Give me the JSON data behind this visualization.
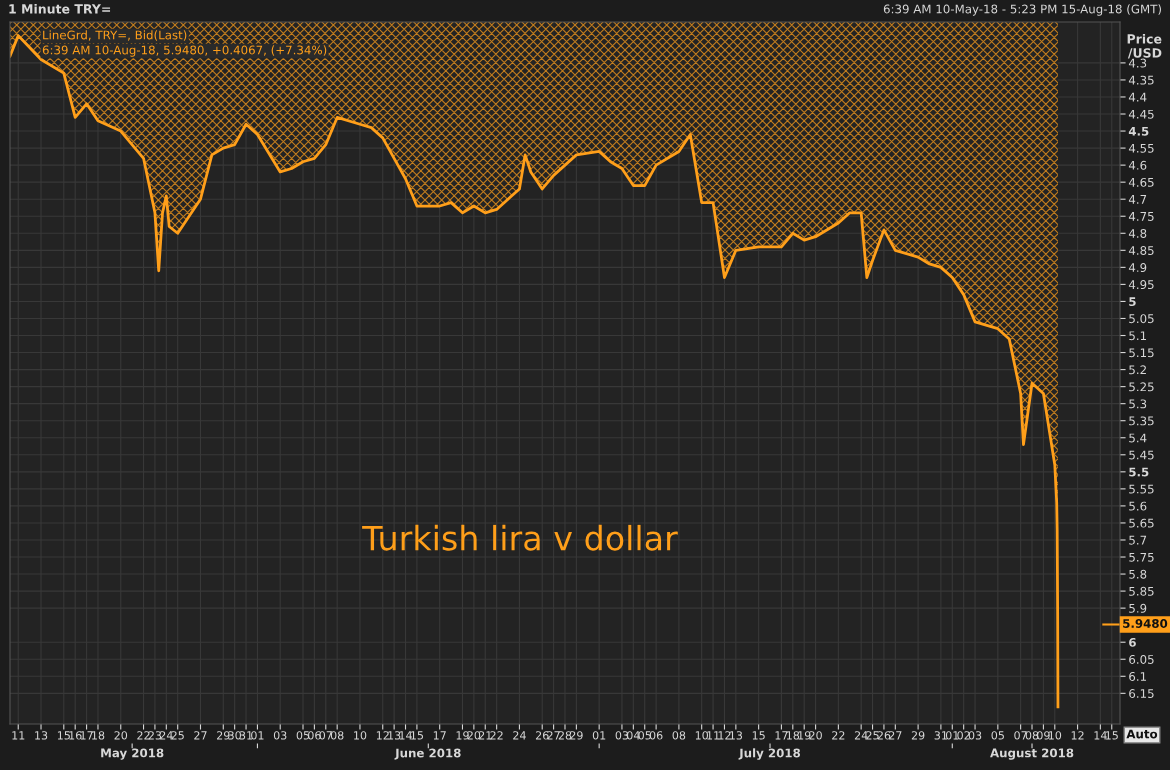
{
  "chart_data": {
    "type": "area",
    "title": "1 Minute TRY=",
    "subtitle": "6:39 AM 10-May-18 - 5:23 PM 15-Aug-18 (GMT)",
    "ylabel": "Price\n/USD",
    "annotations": [
      "LineGrd, TRY=, Bid(Last)",
      "6:39 AM 10-Aug-18, 5.9480, +0.4067, (+7.34%)",
      "Turkish lira v dollar",
      "Auto"
    ],
    "x": [
      "2018-05-10T06:39",
      "2018-05-11",
      "2018-05-13",
      "2018-05-15",
      "2018-05-16",
      "2018-05-17",
      "2018-05-18",
      "2018-05-20",
      "2018-05-22",
      "2018-05-23",
      "2018-05-23T08:00",
      "2018-05-23T16:00",
      "2018-05-24",
      "2018-05-24T06:00",
      "2018-05-25",
      "2018-05-27",
      "2018-05-28",
      "2018-05-29",
      "2018-05-30",
      "2018-05-31",
      "2018-06-01",
      "2018-06-03",
      "2018-06-04",
      "2018-06-05",
      "2018-06-06",
      "2018-06-07",
      "2018-06-08",
      "2018-06-10",
      "2018-06-11",
      "2018-06-12",
      "2018-06-13",
      "2018-06-14",
      "2018-06-15",
      "2018-06-17",
      "2018-06-18",
      "2018-06-19",
      "2018-06-20",
      "2018-06-21",
      "2018-06-22",
      "2018-06-24",
      "2018-06-24T12:00",
      "2018-06-25",
      "2018-06-26",
      "2018-06-27",
      "2018-06-28",
      "2018-06-29",
      "2018-07-01",
      "2018-07-02",
      "2018-07-03",
      "2018-07-04",
      "2018-07-05",
      "2018-07-06",
      "2018-07-08",
      "2018-07-09",
      "2018-07-10",
      "2018-07-11",
      "2018-07-12",
      "2018-07-13",
      "2018-07-15",
      "2018-07-16",
      "2018-07-17",
      "2018-07-18",
      "2018-07-19",
      "2018-07-20",
      "2018-07-22",
      "2018-07-23",
      "2018-07-24",
      "2018-07-24T12:00",
      "2018-07-25",
      "2018-07-26",
      "2018-07-27",
      "2018-07-29",
      "2018-07-30",
      "2018-07-31",
      "2018-08-01",
      "2018-08-02",
      "2018-08-03",
      "2018-08-05",
      "2018-08-06",
      "2018-08-07",
      "2018-08-07T06:00",
      "2018-08-08",
      "2018-08-09",
      "2018-08-10",
      "2018-08-10T04:00",
      "2018-08-10T05:00",
      "2018-08-10T06:00",
      "2018-08-10T06:39"
    ],
    "series": [
      {
        "color": "#ff9f1a",
        "values": [
          4.28,
          4.22,
          4.29,
          4.33,
          4.46,
          4.42,
          4.47,
          4.5,
          4.58,
          4.74,
          4.91,
          4.74,
          4.69,
          4.78,
          4.8,
          4.7,
          4.57,
          4.55,
          4.54,
          4.48,
          4.51,
          4.62,
          4.61,
          4.59,
          4.58,
          4.54,
          4.46,
          4.48,
          4.49,
          4.52,
          4.58,
          4.64,
          4.72,
          4.72,
          4.71,
          4.74,
          4.72,
          4.74,
          4.73,
          4.67,
          4.57,
          4.62,
          4.67,
          4.63,
          4.6,
          4.57,
          4.56,
          4.59,
          4.61,
          4.66,
          4.66,
          4.6,
          4.56,
          4.51,
          4.71,
          4.71,
          4.93,
          4.85,
          4.84,
          4.84,
          4.84,
          4.8,
          4.82,
          4.81,
          4.77,
          4.74,
          4.74,
          4.93,
          4.88,
          4.79,
          4.85,
          4.87,
          4.89,
          4.9,
          4.93,
          4.98,
          5.06,
          5.08,
          5.11,
          5.27,
          5.42,
          5.24,
          5.27,
          5.48,
          5.59,
          5.67,
          5.91,
          6.19
        ]
      }
    ],
    "ylim": [
      6.24,
      4.18
    ],
    "yticks": [
      4.3,
      4.35,
      4.4,
      4.45,
      4.5,
      4.55,
      4.6,
      4.65,
      4.7,
      4.75,
      4.8,
      4.85,
      4.9,
      4.95,
      5,
      5.05,
      5.1,
      5.15,
      5.2,
      5.25,
      5.3,
      5.35,
      5.4,
      5.45,
      5.5,
      5.55,
      5.6,
      5.65,
      5.7,
      5.75,
      5.8,
      5.85,
      5.9,
      6,
      6.05,
      6.1,
      6.15
    ],
    "xlim": [
      "2018-05-10T06:39",
      "2018-08-15T17:23"
    ],
    "xticks": [
      {
        "value": "2018-05-11",
        "label": "11"
      },
      {
        "value": "2018-05-13",
        "label": "13"
      },
      {
        "value": "2018-05-15",
        "label": "15"
      },
      {
        "value": "2018-05-16",
        "label": "16"
      },
      {
        "value": "2018-05-17",
        "label": "17"
      },
      {
        "value": "2018-05-18",
        "label": "18"
      },
      {
        "value": "2018-05-20",
        "label": "20"
      },
      {
        "value": "2018-05-22",
        "label": "22"
      },
      {
        "value": "2018-05-23",
        "label": "23"
      },
      {
        "value": "2018-05-24",
        "label": "24"
      },
      {
        "value": "2018-05-25",
        "label": "25"
      },
      {
        "value": "2018-05-27",
        "label": "27"
      },
      {
        "value": "2018-05-29",
        "label": "29"
      },
      {
        "value": "2018-05-30",
        "label": "30"
      },
      {
        "value": "2018-05-31",
        "label": "31"
      },
      {
        "value": "2018-06-01",
        "label": "01"
      },
      {
        "value": "2018-06-03",
        "label": "03"
      },
      {
        "value": "2018-06-05",
        "label": "05"
      },
      {
        "value": "2018-06-06",
        "label": "06"
      },
      {
        "value": "2018-06-07",
        "label": "07"
      },
      {
        "value": "2018-06-08",
        "label": "08"
      },
      {
        "value": "2018-06-10",
        "label": "10"
      },
      {
        "value": "2018-06-12",
        "label": "12"
      },
      {
        "value": "2018-06-13",
        "label": "13"
      },
      {
        "value": "2018-06-14",
        "label": "14"
      },
      {
        "value": "2018-06-15",
        "label": "15"
      },
      {
        "value": "2018-06-17",
        "label": "17"
      },
      {
        "value": "2018-06-19",
        "label": "19"
      },
      {
        "value": "2018-06-20",
        "label": "20"
      },
      {
        "value": "2018-06-21",
        "label": "21"
      },
      {
        "value": "2018-06-22",
        "label": "22"
      },
      {
        "value": "2018-06-24",
        "label": "24"
      },
      {
        "value": "2018-06-26",
        "label": "26"
      },
      {
        "value": "2018-06-27",
        "label": "27"
      },
      {
        "value": "2018-06-28",
        "label": "28"
      },
      {
        "value": "2018-06-29",
        "label": "29"
      },
      {
        "value": "2018-07-01",
        "label": "01"
      },
      {
        "value": "2018-07-03",
        "label": "03"
      },
      {
        "value": "2018-07-04",
        "label": "04"
      },
      {
        "value": "2018-07-05",
        "label": "05"
      },
      {
        "value": "2018-07-06",
        "label": "06"
      },
      {
        "value": "2018-07-08",
        "label": "08"
      },
      {
        "value": "2018-07-10",
        "label": "10"
      },
      {
        "value": "2018-07-11",
        "label": "11"
      },
      {
        "value": "2018-07-12",
        "label": "12"
      },
      {
        "value": "2018-07-13",
        "label": "13"
      },
      {
        "value": "2018-07-15",
        "label": "15"
      },
      {
        "value": "2018-07-17",
        "label": "17"
      },
      {
        "value": "2018-07-18",
        "label": "18"
      },
      {
        "value": "2018-07-19",
        "label": "19"
      },
      {
        "value": "2018-07-20",
        "label": "20"
      },
      {
        "value": "2018-07-22",
        "label": "22"
      },
      {
        "value": "2018-07-24",
        "label": "24"
      },
      {
        "value": "2018-07-25",
        "label": "25"
      },
      {
        "value": "2018-07-26",
        "label": "26"
      },
      {
        "value": "2018-07-27",
        "label": "27"
      },
      {
        "value": "2018-07-29",
        "label": "29"
      },
      {
        "value": "2018-07-31",
        "label": "31"
      },
      {
        "value": "2018-08-01",
        "label": "01"
      },
      {
        "value": "2018-08-02",
        "label": "02"
      },
      {
        "value": "2018-08-03",
        "label": "03"
      },
      {
        "value": "2018-08-05",
        "label": "05"
      },
      {
        "value": "2018-08-07",
        "label": "07"
      },
      {
        "value": "2018-08-08",
        "label": "08"
      },
      {
        "value": "2018-08-09",
        "label": "09"
      },
      {
        "value": "2018-08-10",
        "label": "10"
      },
      {
        "value": "2018-08-12",
        "label": "12"
      },
      {
        "value": "2018-08-14",
        "label": "14"
      },
      {
        "value": "2018-08-15",
        "label": "15"
      }
    ],
    "x2lim": [
      "2018-05-10T06:39",
      "2018-08-15T17:23"
    ],
    "x2ticks": [
      {
        "value": "2018-05-21",
        "label": "May 2018"
      },
      {
        "value": "2018-06-01",
        "label": null
      },
      {
        "value": "2018-06-16",
        "label": "June 2018"
      },
      {
        "value": "2018-07-01",
        "label": null
      },
      {
        "value": "2018-07-16",
        "label": "July 2018"
      },
      {
        "value": "2018-08-01",
        "label": null
      },
      {
        "value": "2018-08-08",
        "label": "August 2018"
      }
    ],
    "ref_lines": [
      {
        "axis": "y",
        "value": 5.948,
        "label": "5.9480",
        "color": "#ff9f1a"
      }
    ],
    "grid": true,
    "marker": "none",
    "line_style": "solid"
  }
}
